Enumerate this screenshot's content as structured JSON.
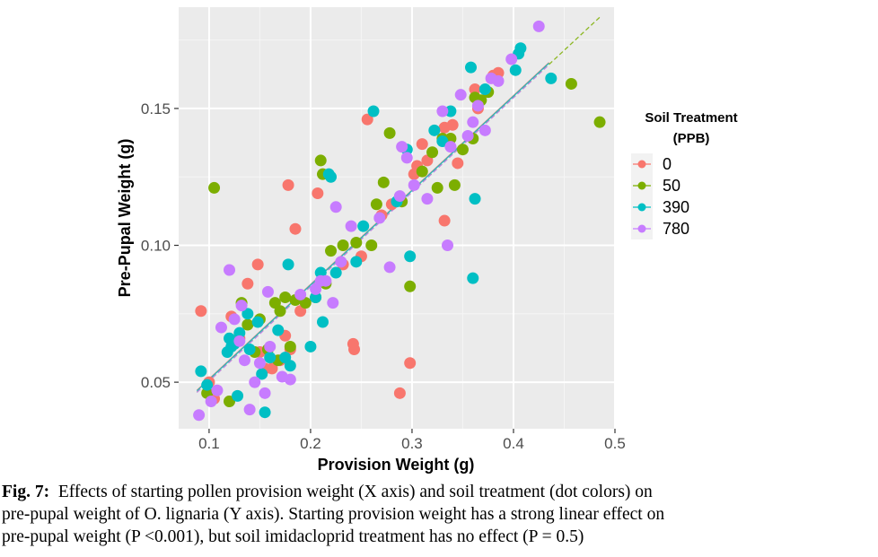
{
  "chart_data": {
    "type": "scatter",
    "xlabel": "Provision Weight (g)",
    "ylabel": "Pre-Pupal Weight (g)",
    "xlim": [
      0.07,
      0.5
    ],
    "ylim": [
      0.033,
      0.187
    ],
    "x_ticks": [
      0.1,
      0.2,
      0.3,
      0.4,
      0.5
    ],
    "x_tick_labels": [
      "0.1",
      "0.2",
      "0.3",
      "0.4",
      "0.5"
    ],
    "y_ticks": [
      0.05,
      0.1,
      0.15
    ],
    "y_tick_labels": [
      "0.05",
      "0.10",
      "0.15"
    ],
    "grid": true,
    "legend": {
      "title_line1": "Soil Treatment",
      "title_line2": "(PPB)",
      "placement": "right"
    },
    "trend_line": {
      "slope": 0.345,
      "intercept": 0.0163,
      "x_range": [
        0.088,
        0.485
      ]
    },
    "series": [
      {
        "name": "0",
        "color": "#F8766D",
        "points": [
          [
            0.092,
            0.076
          ],
          [
            0.1,
            0.05
          ],
          [
            0.105,
            0.044
          ],
          [
            0.122,
            0.074
          ],
          [
            0.13,
            0.066
          ],
          [
            0.138,
            0.086
          ],
          [
            0.148,
            0.093
          ],
          [
            0.15,
            0.061
          ],
          [
            0.155,
            0.055
          ],
          [
            0.162,
            0.055
          ],
          [
            0.17,
            0.058
          ],
          [
            0.175,
            0.067
          ],
          [
            0.178,
            0.122
          ],
          [
            0.18,
            0.062
          ],
          [
            0.185,
            0.106
          ],
          [
            0.19,
            0.076
          ],
          [
            0.207,
            0.119
          ],
          [
            0.232,
            0.093
          ],
          [
            0.242,
            0.064
          ],
          [
            0.243,
            0.062
          ],
          [
            0.25,
            0.096
          ],
          [
            0.256,
            0.146
          ],
          [
            0.27,
            0.111
          ],
          [
            0.28,
            0.115
          ],
          [
            0.288,
            0.046
          ],
          [
            0.298,
            0.057
          ],
          [
            0.302,
            0.126
          ],
          [
            0.305,
            0.129
          ],
          [
            0.31,
            0.137
          ],
          [
            0.315,
            0.131
          ],
          [
            0.332,
            0.143
          ],
          [
            0.332,
            0.109
          ],
          [
            0.34,
            0.144
          ],
          [
            0.345,
            0.13
          ],
          [
            0.362,
            0.157
          ],
          [
            0.365,
            0.15
          ],
          [
            0.38,
            0.162
          ],
          [
            0.385,
            0.163
          ]
        ]
      },
      {
        "name": "50",
        "color": "#7CAE00",
        "points": [
          [
            0.098,
            0.046
          ],
          [
            0.105,
            0.121
          ],
          [
            0.12,
            0.043
          ],
          [
            0.132,
            0.079
          ],
          [
            0.138,
            0.071
          ],
          [
            0.145,
            0.061
          ],
          [
            0.15,
            0.073
          ],
          [
            0.158,
            0.062
          ],
          [
            0.165,
            0.079
          ],
          [
            0.168,
            0.058
          ],
          [
            0.17,
            0.076
          ],
          [
            0.175,
            0.081
          ],
          [
            0.18,
            0.063
          ],
          [
            0.185,
            0.08
          ],
          [
            0.195,
            0.079
          ],
          [
            0.205,
            0.081
          ],
          [
            0.21,
            0.131
          ],
          [
            0.212,
            0.126
          ],
          [
            0.215,
            0.086
          ],
          [
            0.22,
            0.098
          ],
          [
            0.232,
            0.1
          ],
          [
            0.245,
            0.101
          ],
          [
            0.26,
            0.1
          ],
          [
            0.265,
            0.115
          ],
          [
            0.272,
            0.123
          ],
          [
            0.278,
            0.141
          ],
          [
            0.29,
            0.116
          ],
          [
            0.298,
            0.085
          ],
          [
            0.31,
            0.127
          ],
          [
            0.32,
            0.134
          ],
          [
            0.325,
            0.121
          ],
          [
            0.33,
            0.139
          ],
          [
            0.338,
            0.139
          ],
          [
            0.342,
            0.122
          ],
          [
            0.35,
            0.135
          ],
          [
            0.36,
            0.139
          ],
          [
            0.362,
            0.154
          ],
          [
            0.368,
            0.153
          ],
          [
            0.375,
            0.156
          ],
          [
            0.457,
            0.159
          ],
          [
            0.485,
            0.145
          ]
        ]
      },
      {
        "name": "390",
        "color": "#00BFC4",
        "points": [
          [
            0.092,
            0.054
          ],
          [
            0.098,
            0.049
          ],
          [
            0.118,
            0.061
          ],
          [
            0.12,
            0.066
          ],
          [
            0.122,
            0.063
          ],
          [
            0.125,
            0.064
          ],
          [
            0.128,
            0.045
          ],
          [
            0.13,
            0.068
          ],
          [
            0.138,
            0.075
          ],
          [
            0.14,
            0.062
          ],
          [
            0.148,
            0.072
          ],
          [
            0.152,
            0.053
          ],
          [
            0.155,
            0.039
          ],
          [
            0.16,
            0.059
          ],
          [
            0.168,
            0.069
          ],
          [
            0.175,
            0.059
          ],
          [
            0.178,
            0.093
          ],
          [
            0.18,
            0.056
          ],
          [
            0.2,
            0.063
          ],
          [
            0.205,
            0.081
          ],
          [
            0.21,
            0.09
          ],
          [
            0.212,
            0.072
          ],
          [
            0.218,
            0.126
          ],
          [
            0.22,
            0.125
          ],
          [
            0.225,
            0.09
          ],
          [
            0.245,
            0.094
          ],
          [
            0.252,
            0.107
          ],
          [
            0.262,
            0.149
          ],
          [
            0.285,
            0.116
          ],
          [
            0.295,
            0.135
          ],
          [
            0.298,
            0.096
          ],
          [
            0.322,
            0.142
          ],
          [
            0.33,
            0.138
          ],
          [
            0.338,
            0.149
          ],
          [
            0.358,
            0.165
          ],
          [
            0.36,
            0.088
          ],
          [
            0.362,
            0.117
          ],
          [
            0.372,
            0.157
          ],
          [
            0.402,
            0.164
          ],
          [
            0.405,
            0.17
          ],
          [
            0.407,
            0.172
          ],
          [
            0.437,
            0.161
          ]
        ]
      },
      {
        "name": "780",
        "color": "#C77CFF",
        "points": [
          [
            0.09,
            0.038
          ],
          [
            0.102,
            0.043
          ],
          [
            0.108,
            0.047
          ],
          [
            0.112,
            0.07
          ],
          [
            0.12,
            0.091
          ],
          [
            0.125,
            0.073
          ],
          [
            0.13,
            0.065
          ],
          [
            0.132,
            0.078
          ],
          [
            0.135,
            0.058
          ],
          [
            0.14,
            0.04
          ],
          [
            0.145,
            0.05
          ],
          [
            0.15,
            0.057
          ],
          [
            0.155,
            0.046
          ],
          [
            0.158,
            0.083
          ],
          [
            0.16,
            0.063
          ],
          [
            0.172,
            0.052
          ],
          [
            0.18,
            0.051
          ],
          [
            0.19,
            0.082
          ],
          [
            0.205,
            0.084
          ],
          [
            0.21,
            0.087
          ],
          [
            0.215,
            0.087
          ],
          [
            0.222,
            0.079
          ],
          [
            0.225,
            0.114
          ],
          [
            0.23,
            0.094
          ],
          [
            0.24,
            0.107
          ],
          [
            0.268,
            0.11
          ],
          [
            0.278,
            0.092
          ],
          [
            0.288,
            0.118
          ],
          [
            0.29,
            0.136
          ],
          [
            0.295,
            0.132
          ],
          [
            0.302,
            0.122
          ],
          [
            0.315,
            0.117
          ],
          [
            0.33,
            0.149
          ],
          [
            0.335,
            0.1
          ],
          [
            0.338,
            0.136
          ],
          [
            0.348,
            0.155
          ],
          [
            0.355,
            0.14
          ],
          [
            0.36,
            0.145
          ],
          [
            0.365,
            0.151
          ],
          [
            0.372,
            0.142
          ],
          [
            0.378,
            0.161
          ],
          [
            0.385,
            0.16
          ],
          [
            0.398,
            0.168
          ],
          [
            0.425,
            0.18
          ]
        ]
      }
    ]
  },
  "caption": {
    "label": "Fig. 7:",
    "line1": "Effects of starting pollen provision weight (X axis) and soil treatment (dot colors) on",
    "line2": "pre-pupal weight of O. lignaria (Y axis).  Starting provision weight has a strong linear effect on",
    "line3": "pre-pupal weight (P <0.001), but soil imidacloprid treatment has no effect (P = 0.5)"
  }
}
